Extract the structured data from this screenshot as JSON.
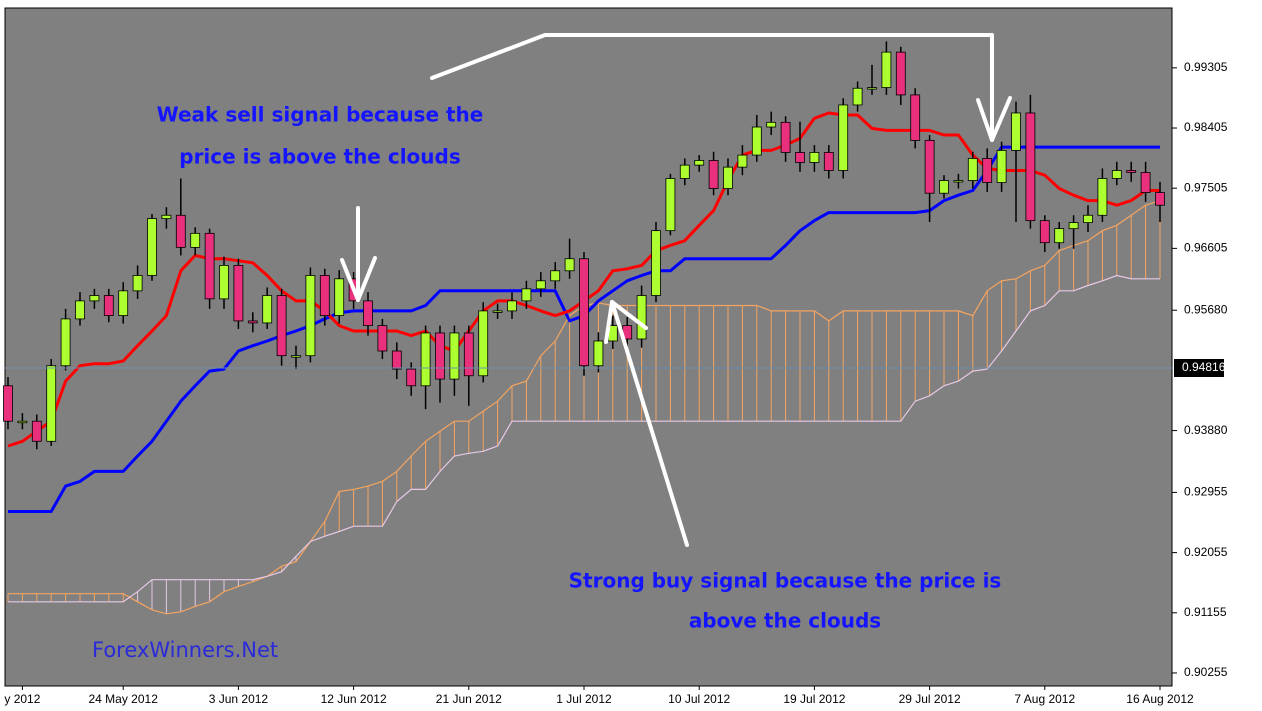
{
  "chart_data": {
    "type": "candlestick",
    "categories": [
      null,
      "y 2012",
      null,
      null,
      null,
      null,
      null,
      null,
      "24 May 2012",
      null,
      null,
      null,
      null,
      null,
      null,
      null,
      "3 Jun 2012",
      null,
      null,
      null,
      null,
      null,
      null,
      null,
      "12 Jun 2012",
      null,
      null,
      null,
      null,
      null,
      null,
      null,
      "21 Jun 2012",
      null,
      null,
      null,
      null,
      null,
      null,
      null,
      "1 Jul 2012",
      null,
      null,
      null,
      null,
      null,
      null,
      null,
      "10 Jul 2012",
      null,
      null,
      null,
      null,
      null,
      null,
      null,
      "19 Jul 2012",
      null,
      null,
      null,
      null,
      null,
      null,
      null,
      "29 Jul 2012",
      null,
      null,
      null,
      null,
      null,
      null,
      null,
      "7 Aug 2012",
      null,
      null,
      null,
      null,
      null,
      null,
      null,
      "16 Aug 2012"
    ],
    "candles": {
      "bull_color": "#adff2f",
      "bear_color": "#e8307c",
      "open": [
        0.9455,
        0.9402,
        0.9402,
        0.9372,
        0.9485,
        0.9555,
        0.9582,
        0.959,
        0.956,
        0.9597,
        0.962,
        0.9705,
        0.971,
        0.9662,
        0.9683,
        0.9585,
        0.9635,
        0.9552,
        0.9549,
        0.959,
        0.95,
        0.95,
        0.962,
        0.956,
        0.9615,
        0.9582,
        0.9545,
        0.9507,
        0.948,
        0.9455,
        0.9534,
        0.9465,
        0.9534,
        0.947,
        0.9567,
        0.9567,
        0.9582,
        0.96,
        0.9612,
        0.9627,
        0.9645,
        0.9485,
        0.9522,
        0.9545,
        0.9525,
        0.959,
        0.9687,
        0.9765,
        0.9785,
        0.9792,
        0.975,
        0.9782,
        0.98,
        0.9842,
        0.9849,
        0.9804,
        0.9789,
        0.9804,
        0.9777,
        0.9875,
        0.99,
        0.9901,
        0.9954,
        0.989,
        0.9822,
        0.9743,
        0.9762,
        0.9762,
        0.9795,
        0.9759,
        0.9807,
        0.9863,
        0.9702,
        0.9669,
        0.969,
        0.9699,
        0.971,
        0.9765,
        0.9777,
        0.9774,
        0.9744
      ],
      "high": [
        0.9468,
        0.9414,
        0.9412,
        0.9495,
        0.957,
        0.9595,
        0.96,
        0.96,
        0.961,
        0.9635,
        0.9712,
        0.9722,
        0.9765,
        0.9692,
        0.969,
        0.9648,
        0.9645,
        0.9565,
        0.9602,
        0.96,
        0.9515,
        0.9632,
        0.963,
        0.9628,
        0.9625,
        0.9595,
        0.9555,
        0.952,
        0.949,
        0.9545,
        0.9545,
        0.9545,
        0.9545,
        0.958,
        0.9578,
        0.9595,
        0.9612,
        0.9625,
        0.964,
        0.9675,
        0.9655,
        0.9535,
        0.956,
        0.9558,
        0.9605,
        0.97,
        0.9772,
        0.9795,
        0.98,
        0.9805,
        0.9795,
        0.9815,
        0.986,
        0.9865,
        0.9858,
        0.985,
        0.9815,
        0.9815,
        0.9885,
        0.991,
        0.9935,
        0.997,
        0.9962,
        0.99,
        0.983,
        0.977,
        0.9772,
        0.9805,
        0.981,
        0.982,
        0.988,
        0.989,
        0.971,
        0.97,
        0.971,
        0.9725,
        0.978,
        0.979,
        0.979,
        0.979,
        0.976
      ],
      "low": [
        0.939,
        0.939,
        0.936,
        0.9365,
        0.9478,
        0.9545,
        0.957,
        0.955,
        0.9548,
        0.9585,
        0.9612,
        0.969,
        0.965,
        0.965,
        0.957,
        0.957,
        0.954,
        0.9535,
        0.954,
        0.9485,
        0.948,
        0.949,
        0.9545,
        0.9548,
        0.957,
        0.953,
        0.9495,
        0.9465,
        0.944,
        0.942,
        0.943,
        0.944,
        0.9425,
        0.946,
        0.9555,
        0.9555,
        0.957,
        0.9588,
        0.96,
        0.9615,
        0.947,
        0.9475,
        0.951,
        0.9512,
        0.9512,
        0.958,
        0.968,
        0.9755,
        0.9775,
        0.974,
        0.974,
        0.977,
        0.979,
        0.983,
        0.979,
        0.9775,
        0.9775,
        0.9765,
        0.9765,
        0.9865,
        0.989,
        0.989,
        0.9875,
        0.981,
        0.97,
        0.9735,
        0.975,
        0.975,
        0.9745,
        0.9745,
        0.97,
        0.969,
        0.9655,
        0.966,
        0.966,
        0.9685,
        0.97,
        0.9755,
        0.976,
        0.973,
        0.97
      ],
      "close": [
        0.9402,
        0.9402,
        0.9372,
        0.9485,
        0.9555,
        0.9582,
        0.959,
        0.956,
        0.9597,
        0.962,
        0.9705,
        0.971,
        0.9662,
        0.9683,
        0.9585,
        0.9635,
        0.9552,
        0.9549,
        0.959,
        0.95,
        0.95,
        0.962,
        0.956,
        0.9615,
        0.9582,
        0.9545,
        0.9507,
        0.948,
        0.9455,
        0.9534,
        0.9465,
        0.9534,
        0.947,
        0.9567,
        0.9567,
        0.9582,
        0.96,
        0.9612,
        0.9627,
        0.9645,
        0.9485,
        0.9522,
        0.9545,
        0.9525,
        0.959,
        0.9687,
        0.9765,
        0.9785,
        0.9792,
        0.975,
        0.9782,
        0.98,
        0.9842,
        0.9849,
        0.9804,
        0.9789,
        0.9804,
        0.9777,
        0.9875,
        0.99,
        0.9901,
        0.9954,
        0.989,
        0.9822,
        0.9743,
        0.9762,
        0.9762,
        0.9795,
        0.9759,
        0.9807,
        0.9863,
        0.9702,
        0.9669,
        0.969,
        0.9699,
        0.971,
        0.9765,
        0.9777,
        0.9774,
        0.9744,
        0.9725
      ]
    },
    "series": [
      {
        "color": "#0000ff",
        "values": [
          0.9267,
          0.9267,
          0.9267,
          0.9267,
          0.9305,
          0.9312,
          0.9327,
          0.9327,
          0.9327,
          0.935,
          0.9372,
          0.9402,
          0.9432,
          0.9455,
          0.9477,
          0.948,
          0.9507,
          0.9515,
          0.9522,
          0.953,
          0.9537,
          0.9545,
          0.9555,
          0.9564,
          0.9567,
          0.9567,
          0.9567,
          0.9567,
          0.9567,
          0.9575,
          0.9597,
          0.9597,
          0.9597,
          0.9597,
          0.9597,
          0.9597,
          0.9597,
          0.9597,
          0.9597,
          0.9552,
          0.956,
          0.9582,
          0.9597,
          0.9612,
          0.962,
          0.9627,
          0.9627,
          0.9645,
          0.9645,
          0.9645,
          0.9645,
          0.9645,
          0.9645,
          0.9645,
          0.9665,
          0.9687,
          0.9702,
          0.9714,
          0.9714,
          0.9714,
          0.9714,
          0.9714,
          0.9714,
          0.9714,
          0.9717,
          0.9732,
          0.974,
          0.9747,
          0.9777,
          0.9812,
          0.9812,
          0.9812,
          0.9812,
          0.9812,
          0.9812,
          0.9812,
          0.9812,
          0.9812,
          0.9812,
          0.9812,
          0.9812
        ]
      },
      {
        "color": "#ff0000",
        "values": [
          0.9365,
          0.9372,
          0.9387,
          0.9402,
          0.9462,
          0.9485,
          0.9488,
          0.9488,
          0.9492,
          0.9515,
          0.9537,
          0.956,
          0.9627,
          0.965,
          0.9645,
          0.9645,
          0.9642,
          0.9639,
          0.962,
          0.9597,
          0.9582,
          0.9582,
          0.9567,
          0.9545,
          0.9537,
          0.9537,
          0.9537,
          0.9537,
          0.953,
          0.9537,
          0.9515,
          0.9507,
          0.9537,
          0.9567,
          0.9582,
          0.9582,
          0.9575,
          0.9567,
          0.956,
          0.9567,
          0.9582,
          0.9597,
          0.9627,
          0.963,
          0.9635,
          0.9657,
          0.9665,
          0.9672,
          0.9695,
          0.9717,
          0.9762,
          0.98,
          0.9807,
          0.9807,
          0.9815,
          0.9825,
          0.9855,
          0.9863,
          0.986,
          0.986,
          0.984,
          0.9837,
          0.9837,
          0.9837,
          0.9837,
          0.983,
          0.983,
          0.98,
          0.978,
          0.9777,
          0.9777,
          0.9777,
          0.977,
          0.975,
          0.974,
          0.9732,
          0.9732,
          0.9725,
          0.9732,
          0.9747,
          0.9747
        ]
      }
    ],
    "cloud": {
      "span_a": {
        "color": "#f4a460",
        "values": [
          0.9144,
          0.9144,
          0.9144,
          0.9144,
          0.9144,
          0.9144,
          0.9144,
          0.9144,
          0.9144,
          0.9132,
          0.912,
          0.9114,
          0.9117,
          0.9125,
          0.9132,
          0.9147,
          0.9155,
          0.9162,
          0.917,
          0.9185,
          0.9192,
          0.9222,
          0.9252,
          0.9297,
          0.93,
          0.9305,
          0.9312,
          0.9327,
          0.935,
          0.9372,
          0.9387,
          0.9402,
          0.9402,
          0.9417,
          0.9432,
          0.9455,
          0.9462,
          0.95,
          0.9522,
          0.956,
          0.9575,
          0.9579,
          0.9575,
          0.9575,
          0.9575,
          0.9575,
          0.9575,
          0.9575,
          0.9575,
          0.9575,
          0.9575,
          0.9575,
          0.9575,
          0.9567,
          0.9567,
          0.9567,
          0.9567,
          0.9552,
          0.9567,
          0.9567,
          0.9567,
          0.9567,
          0.9567,
          0.9567,
          0.9567,
          0.9567,
          0.9567,
          0.956,
          0.9597,
          0.9612,
          0.9615,
          0.9627,
          0.9635,
          0.9657,
          0.9665,
          0.9672,
          0.9687,
          0.9695,
          0.971,
          0.9725,
          0.9732
        ]
      },
      "span_b": {
        "color": "#e6c8e6",
        "values": [
          0.9132,
          0.9132,
          0.9132,
          0.9132,
          0.9132,
          0.9132,
          0.9132,
          0.9132,
          0.9132,
          0.9147,
          0.9165,
          0.9165,
          0.9165,
          0.9165,
          0.9165,
          0.9165,
          0.9165,
          0.9165,
          0.917,
          0.9177,
          0.92,
          0.9222,
          0.923,
          0.9237,
          0.9245,
          0.9245,
          0.9245,
          0.9282,
          0.93,
          0.93,
          0.9327,
          0.935,
          0.9354,
          0.9357,
          0.9365,
          0.9402,
          0.9402,
          0.9402,
          0.9402,
          0.9402,
          0.9402,
          0.9402,
          0.9402,
          0.9402,
          0.9402,
          0.9402,
          0.9402,
          0.9402,
          0.9402,
          0.9402,
          0.9402,
          0.9402,
          0.9402,
          0.9402,
          0.9402,
          0.9402,
          0.9402,
          0.9402,
          0.9402,
          0.9402,
          0.9402,
          0.9402,
          0.9402,
          0.9432,
          0.944,
          0.9455,
          0.9462,
          0.9477,
          0.948,
          0.9507,
          0.9537,
          0.9567,
          0.9575,
          0.9597,
          0.9597,
          0.9605,
          0.9612,
          0.962,
          0.9615,
          0.9615,
          0.9615
        ]
      }
    },
    "current_price": 0.94816,
    "ylim": [
      0.9006,
      1.002
    ],
    "yticks": [
      0.99305,
      0.98405,
      0.97505,
      0.96605,
      {
        "value": 0.9568,
        "label": "0.95680"
      },
      {
        "value": 0.9388,
        "label": "0.93880"
      },
      0.92955,
      0.92055,
      0.91155,
      0.90255
    ],
    "annotations": {
      "sell": [
        "Weak sell signal because the",
        "price is above the clouds"
      ],
      "buy": [
        "Strong buy signal because the price is",
        "above the clouds"
      ],
      "brand": "ForexWinners.Net"
    }
  }
}
